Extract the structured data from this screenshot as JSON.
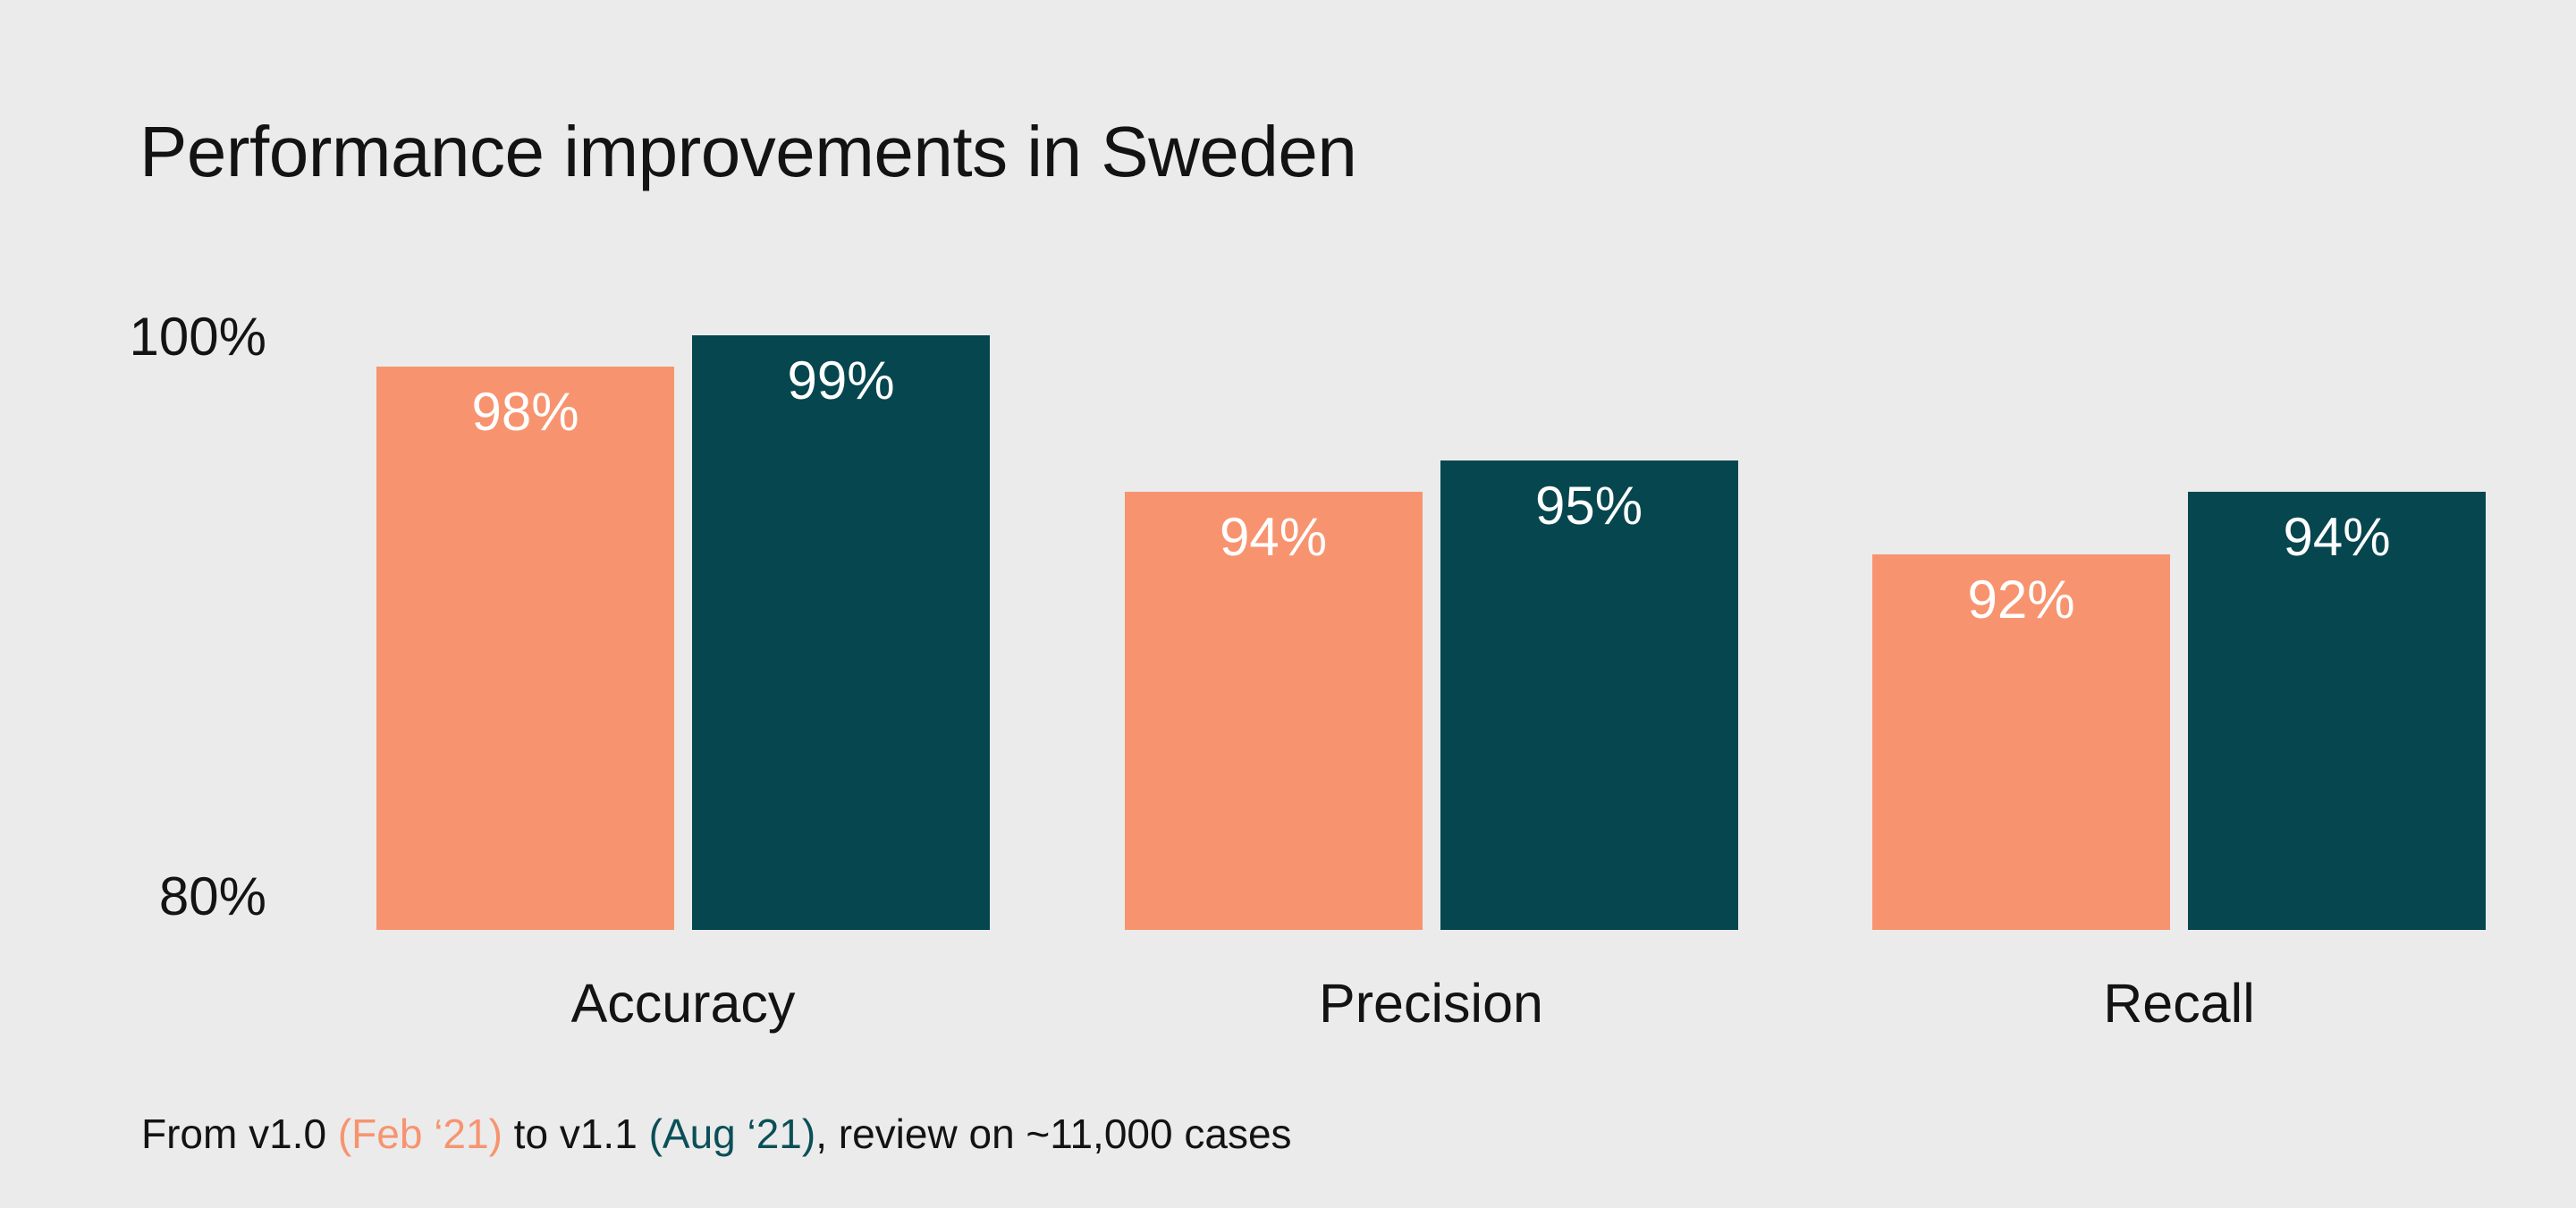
{
  "title": "Performance improvements in Sweden",
  "chart_data": {
    "type": "bar",
    "title": "Performance improvements in Sweden",
    "categories": [
      "Accuracy",
      "Precision",
      "Recall"
    ],
    "series": [
      {
        "name": "v1.0 (Feb ‘21)",
        "color": "#f7946f",
        "values": [
          98,
          94,
          92
        ]
      },
      {
        "name": "v1.1 (Aug ‘21)",
        "color": "#05464f",
        "values": [
          99,
          95,
          94
        ]
      }
    ],
    "value_suffix": "%",
    "ylim": [
      80,
      100
    ],
    "yticks": [
      "100%",
      "80%"
    ],
    "grid": false,
    "legend": "none",
    "value_labels": "inside-top of each bar, white"
  },
  "axis": {
    "top_label": "100%",
    "bottom_label": "80%"
  },
  "footer": {
    "segments": [
      {
        "text": "From v1.0 ",
        "color": "default"
      },
      {
        "text": "(Feb ‘21)",
        "color": "orange"
      },
      {
        "text": " to v1.1 ",
        "color": "default"
      },
      {
        "text": "(Aug ‘21)",
        "color": "teal"
      },
      {
        "text": ", review on ~11,000 cases",
        "color": "default"
      }
    ]
  },
  "colors": {
    "background": "#ebebeb",
    "orange": "#f7946f",
    "teal": "#05464f",
    "text": "#131313"
  }
}
